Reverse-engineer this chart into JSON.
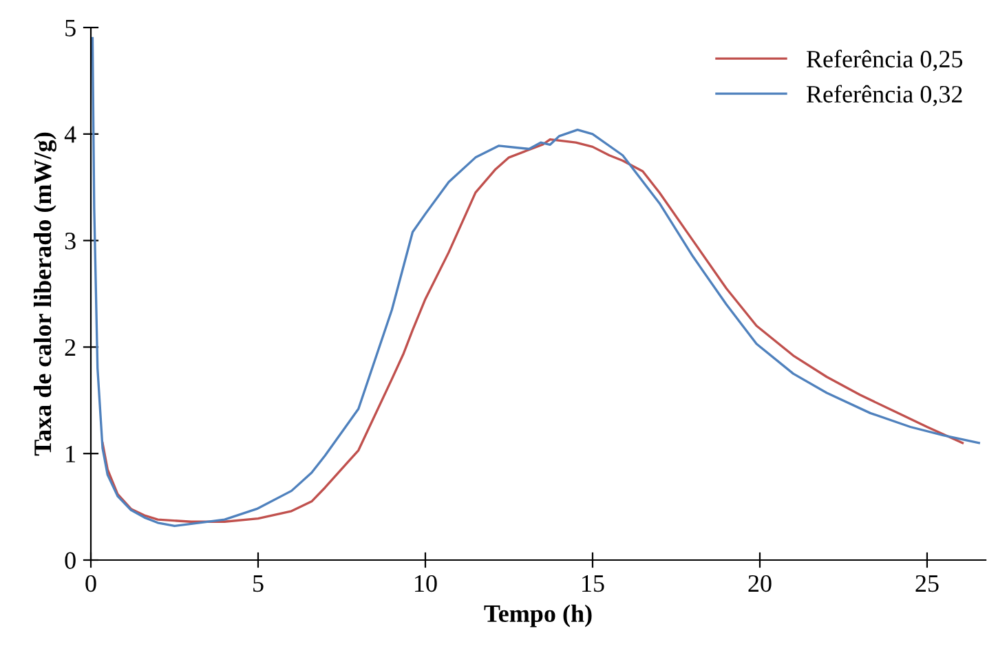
{
  "chart_data": {
    "type": "line",
    "xlabel": "Tempo (h)",
    "ylabel": "Taxa de calor liberado (mW/g)",
    "xlim": [
      0,
      26.75
    ],
    "ylim": [
      0,
      5
    ],
    "xticks": [
      0,
      5,
      10,
      15,
      20,
      25
    ],
    "yticks": [
      0,
      1,
      2,
      3,
      4,
      5
    ],
    "grid": false,
    "legend": "top right",
    "marker": "none",
    "line_style": "solid",
    "series": [
      {
        "name": "Referência 0,25",
        "color": "#c0504d",
        "x": [
          0.35,
          0.5,
          0.8,
          1.2,
          1.6,
          2,
          3,
          4,
          5,
          6,
          6.6,
          7,
          8,
          9,
          9.35,
          9.62,
          10,
          10.7,
          11.5,
          12.1,
          12.5,
          13,
          13.5,
          13.73,
          14.5,
          15,
          15.5,
          15.9,
          16.5,
          17,
          18,
          19,
          19.9,
          21,
          22,
          23,
          24,
          25,
          26.06
        ],
        "values": [
          1.1,
          0.85,
          0.62,
          0.48,
          0.42,
          0.38,
          0.36,
          0.36,
          0.39,
          0.46,
          0.55,
          0.68,
          1.03,
          1.7,
          1.94,
          2.16,
          2.45,
          2.89,
          3.45,
          3.67,
          3.78,
          3.84,
          3.9,
          3.95,
          3.92,
          3.88,
          3.8,
          3.75,
          3.65,
          3.45,
          3.0,
          2.55,
          2.2,
          1.92,
          1.72,
          1.55,
          1.4,
          1.25,
          1.1
        ]
      },
      {
        "name": "Referência 0,32",
        "color": "#4f81bd",
        "x": [
          0.05,
          0.1,
          0.2,
          0.35,
          0.5,
          0.8,
          1.2,
          1.6,
          2,
          2.5,
          3,
          4,
          4.96,
          6,
          6.6,
          7,
          8,
          9,
          9.62,
          10,
          10.7,
          11.5,
          12.2,
          13.1,
          13.45,
          13.73,
          14,
          14.55,
          15,
          15.9,
          17,
          18,
          19,
          19.9,
          21,
          22,
          23.3,
          24.5,
          25.5,
          26.55
        ],
        "values": [
          4.9,
          3.3,
          1.8,
          1.05,
          0.8,
          0.6,
          0.47,
          0.4,
          0.35,
          0.32,
          0.34,
          0.38,
          0.48,
          0.65,
          0.82,
          0.98,
          1.42,
          2.35,
          3.08,
          3.25,
          3.55,
          3.78,
          3.89,
          3.86,
          3.92,
          3.9,
          3.98,
          4.04,
          4.0,
          3.8,
          3.35,
          2.85,
          2.4,
          2.03,
          1.75,
          1.57,
          1.38,
          1.25,
          1.17,
          1.1
        ]
      }
    ]
  }
}
